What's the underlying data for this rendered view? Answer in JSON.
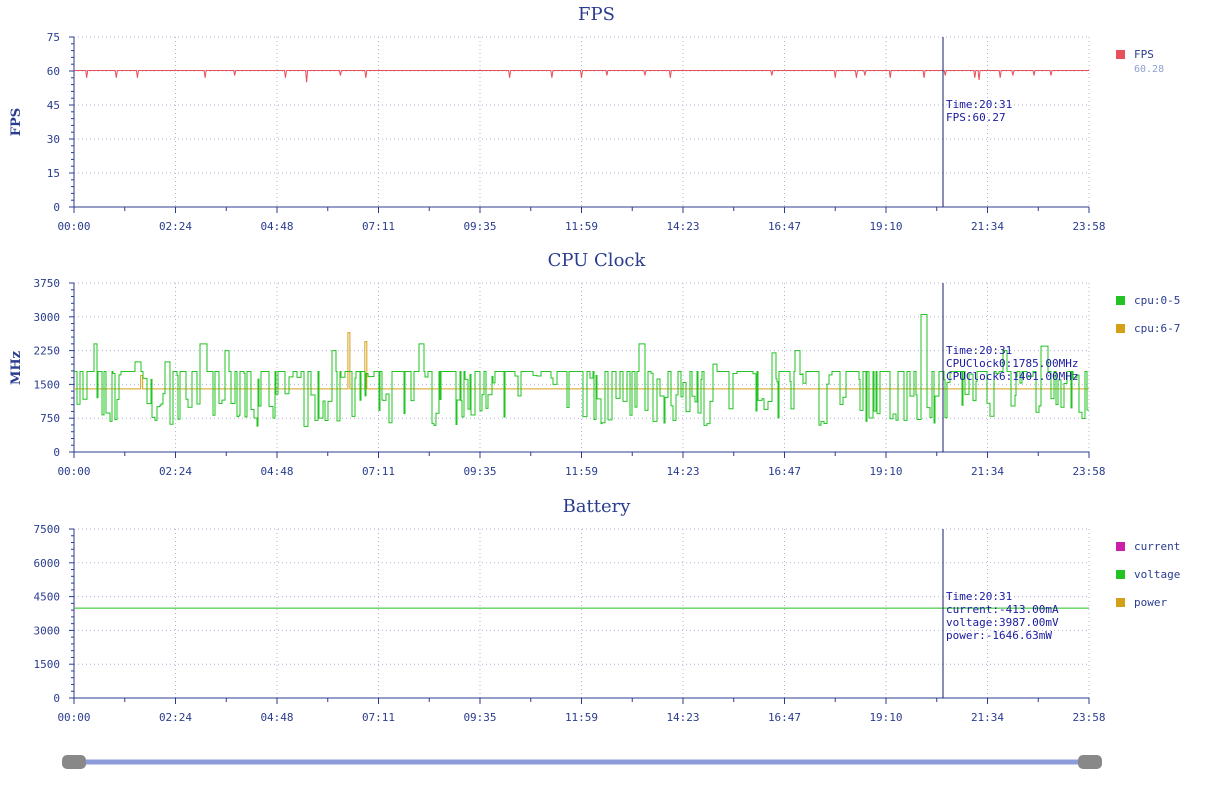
{
  "chart_data": [
    {
      "id": "fps",
      "type": "line",
      "title": "FPS",
      "ylabel": "FPS",
      "ylim": [
        0,
        75
      ],
      "yticks": [
        0,
        15,
        30,
        45,
        60,
        75
      ],
      "xticks": [
        "00:00",
        "02:24",
        "04:48",
        "07:11",
        "09:35",
        "11:59",
        "14:23",
        "16:47",
        "19:10",
        "21:34",
        "23:58"
      ],
      "grid": true,
      "legend_position": "right",
      "series": [
        {
          "name": "FPS",
          "color": "#e8505b",
          "legend_value": "60.28",
          "baseline": 60.2,
          "dips": [
            [
              0.3,
              57
            ],
            [
              1.0,
              57
            ],
            [
              1.5,
              57
            ],
            [
              3.1,
              57
            ],
            [
              3.8,
              58
            ],
            [
              5.0,
              57
            ],
            [
              5.5,
              55
            ],
            [
              6.3,
              58
            ],
            [
              6.9,
              57
            ],
            [
              10.3,
              57
            ],
            [
              11.3,
              57
            ],
            [
              12.0,
              57
            ],
            [
              12.6,
              58
            ],
            [
              13.5,
              58
            ],
            [
              14.1,
              57
            ],
            [
              16.5,
              58
            ],
            [
              18.0,
              57
            ],
            [
              18.5,
              57
            ],
            [
              18.7,
              58
            ],
            [
              19.3,
              57
            ],
            [
              20.1,
              57
            ],
            [
              20.6,
              58
            ],
            [
              21.3,
              57
            ],
            [
              21.4,
              56
            ],
            [
              21.9,
              57
            ],
            [
              22.2,
              58
            ],
            [
              22.7,
              58
            ],
            [
              23.1,
              58
            ]
          ]
        }
      ],
      "cursor": {
        "x": "20:31",
        "lines": [
          "Time:20:31",
          "FPS:60.27"
        ]
      }
    },
    {
      "id": "cpu",
      "type": "line",
      "title": "CPU Clock",
      "ylabel": "MHz",
      "ylim": [
        0,
        3750
      ],
      "yticks": [
        0,
        750,
        1500,
        2250,
        3000,
        3750
      ],
      "xticks": [
        "00:00",
        "02:24",
        "04:48",
        "07:11",
        "09:35",
        "11:59",
        "14:23",
        "16:47",
        "19:10",
        "21:34",
        "23:58"
      ],
      "grid": true,
      "legend_position": "right",
      "series": [
        {
          "name": "cpu:0-5",
          "color": "#22c322",
          "top": 1785,
          "low_min": 550,
          "low_max": 1300,
          "spikes": [
            [
              0.45,
              2400
            ],
            [
              1.5,
              2000
            ],
            [
              2.2,
              2000
            ],
            [
              3.0,
              2400
            ],
            [
              3.6,
              2250
            ],
            [
              6.1,
              2250
            ],
            [
              8.2,
              2400
            ],
            [
              13.4,
              2400
            ],
            [
              15.1,
              1950
            ],
            [
              16.5,
              2200
            ],
            [
              17.1,
              2250
            ],
            [
              20.05,
              3050
            ],
            [
              22.0,
              2250
            ],
            [
              22.9,
              2350
            ]
          ]
        },
        {
          "name": "cpu:6-7",
          "color": "#d4a017",
          "base": 1401,
          "spikes": [
            [
              6.5,
              2650
            ],
            [
              6.9,
              2450
            ],
            [
              1.6,
              1700
            ]
          ]
        }
      ],
      "cursor": {
        "x": "20:31",
        "lines": [
          "Time:20:31",
          "CPUClock0:1785.00MHz",
          "CPUClock6:1401.00MHz"
        ]
      }
    },
    {
      "id": "battery",
      "type": "line",
      "title": "Battery",
      "ylabel": "",
      "ylim": [
        0,
        7500
      ],
      "yticks": [
        0,
        1500,
        3000,
        4500,
        6000,
        7500
      ],
      "xticks": [
        "00:00",
        "02:24",
        "04:48",
        "07:11",
        "09:35",
        "11:59",
        "14:23",
        "16:47",
        "19:10",
        "21:34",
        "23:58"
      ],
      "grid": true,
      "legend_position": "right",
      "series": [
        {
          "name": "current",
          "color": "#cc1fa8",
          "value": -413
        },
        {
          "name": "voltage",
          "color": "#22c322",
          "value": 3987
        },
        {
          "name": "power",
          "color": "#d4a017",
          "value": -1646.63
        }
      ],
      "cursor": {
        "x": "20:31",
        "lines": [
          "Time:20:31",
          "current:-413.00mA",
          "voltage:3987.00mV",
          "power:-1646.63mW"
        ]
      }
    }
  ],
  "slider": {
    "start": 0,
    "end": 1,
    "track_color": "#8d9bd8",
    "handle_color": "#888888"
  }
}
